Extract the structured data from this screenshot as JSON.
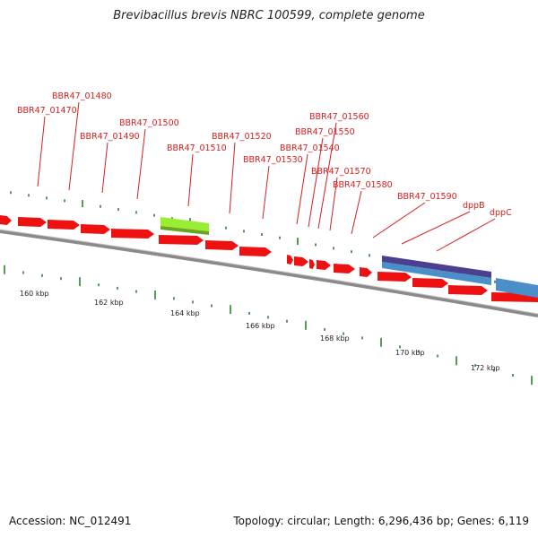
{
  "title": "Brevibacillus brevis NBRC 100599, complete genome",
  "footer": {
    "accession": "Accession: NC_012491",
    "summary": "Topology: circular; Length: 6,296,436 bp; Genes: 6,119"
  },
  "colors": {
    "cds": "#ee1111",
    "selected_gene": "#99ee33",
    "feature_blue": "#4a8fc8",
    "feature_purple": "#4b3f8f",
    "label": "#d42020",
    "backbone": "#8a8a8a",
    "tick": "#1e7a1e"
  },
  "kbp_labels": [
    "160 kbp",
    "162 kbp",
    "164 kbp",
    "166 kbp",
    "168 kbp",
    "170 kbp",
    "172 kbp"
  ],
  "gene_labels": [
    "BBR47_01470",
    "BBR47_01480",
    "BBR47_01490",
    "BBR47_01500",
    "BBR47_01510",
    "BBR47_01520",
    "BBR47_01530",
    "BBR47_01540",
    "BBR47_01550",
    "BBR47_01560",
    "BBR47_01570",
    "BBR47_01580",
    "BBR47_01590",
    "dppB",
    "dppC"
  ]
}
